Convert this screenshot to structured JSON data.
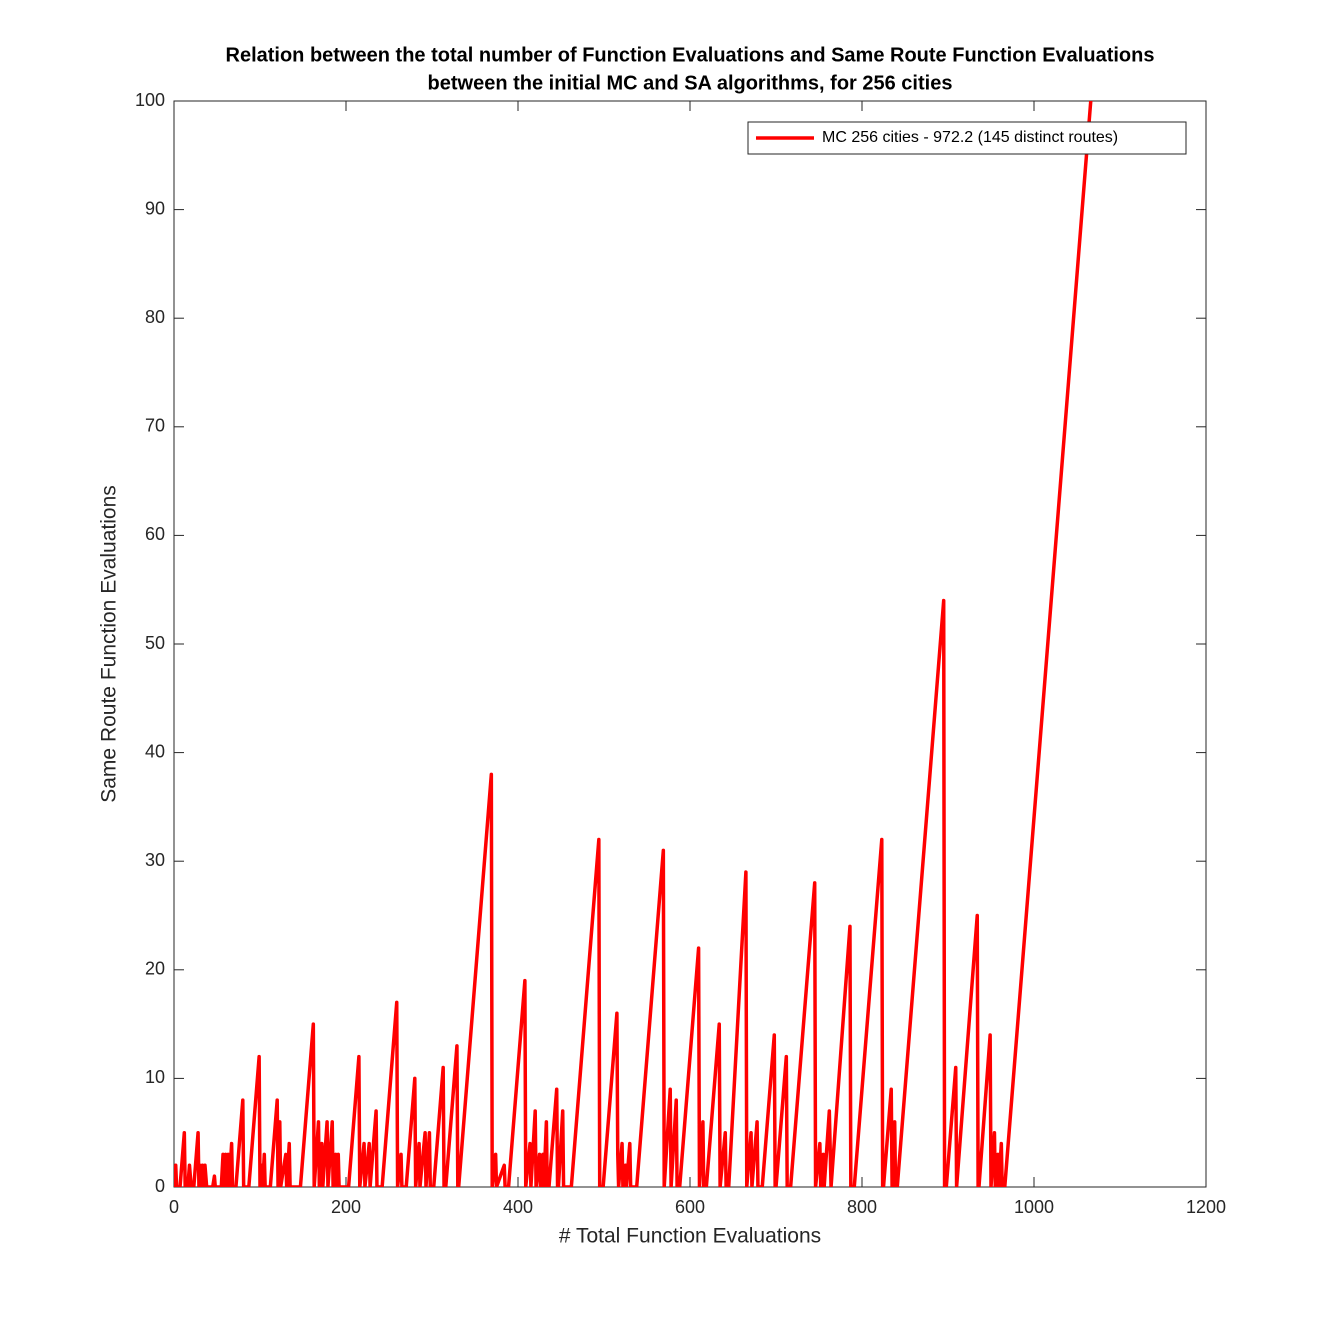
{
  "chart_data": {
    "type": "line",
    "title": [
      "Relation between the total number of Function Evaluations and Same Route Function Evaluations",
      "between the initial MC and SA algorithms, for 256 cities"
    ],
    "xlabel": "# Total Function Evaluations",
    "ylabel": "Same Route Function Evaluations",
    "xlim": [
      0,
      1200
    ],
    "xticks": [
      0,
      200,
      400,
      600,
      800,
      1000,
      1200
    ],
    "ylim": [
      0,
      100
    ],
    "yticks": [
      0,
      10,
      20,
      30,
      40,
      50,
      60,
      70,
      80,
      90,
      100
    ],
    "legend": "top-right",
    "x": [
      0,
      2,
      3,
      7,
      12,
      13,
      16,
      18,
      20,
      23,
      28,
      29,
      30,
      32,
      33,
      35,
      36,
      38,
      45,
      47,
      48,
      55,
      57,
      58,
      60,
      61,
      63,
      64,
      67,
      68,
      72,
      80,
      81,
      87,
      99,
      100,
      102,
      103,
      105,
      106,
      112,
      120,
      121,
      123,
      124,
      130,
      131,
      134,
      135,
      147,
      162,
      163,
      168,
      169,
      172,
      173,
      178,
      179,
      184,
      185,
      188,
      189,
      191,
      192,
      203,
      215,
      216,
      221,
      222,
      227,
      228,
      235,
      236,
      242,
      259,
      260,
      264,
      265,
      270,
      280,
      281,
      285,
      286,
      292,
      293,
      297,
      298,
      302,
      313,
      314,
      316,
      329,
      330,
      331,
      369,
      370,
      374,
      375,
      384,
      385,
      389,
      408,
      409,
      414,
      415,
      420,
      421,
      425,
      426,
      429,
      430,
      433,
      434,
      436,
      445,
      446,
      447,
      452,
      453,
      462,
      494,
      495,
      499,
      515,
      516,
      517,
      521,
      522,
      525,
      526,
      530,
      531,
      538,
      569,
      570,
      577,
      578,
      584,
      585,
      588,
      610,
      611,
      615,
      616,
      619,
      634,
      635,
      641,
      642,
      645,
      665,
      666,
      671,
      672,
      678,
      679,
      684,
      698,
      699,
      700,
      712,
      713,
      717,
      745,
      746,
      751,
      752,
      755,
      756,
      762,
      764,
      786,
      787,
      791,
      823,
      824,
      825,
      834,
      835,
      838,
      839,
      841,
      895,
      896,
      898,
      909,
      910,
      934,
      935,
      936,
      949,
      950,
      954,
      955,
      958,
      959,
      962,
      963,
      966,
      1070
    ],
    "series": [
      {
        "name": "MC 256 cities - 972.2 (145 distinct routes)",
        "color": "#ff0000",
        "values": [
          0,
          2,
          0,
          0,
          5,
          0,
          0,
          2,
          0,
          0,
          5,
          0,
          2,
          0,
          2,
          0,
          2,
          0,
          0,
          1,
          0,
          0,
          3,
          0,
          3,
          0,
          3,
          0,
          4,
          0,
          0,
          8,
          0,
          0,
          12,
          0,
          2,
          0,
          3,
          0,
          0,
          8,
          0,
          6,
          0,
          3,
          0,
          4,
          0,
          0,
          15,
          0,
          6,
          0,
          4,
          0,
          6,
          0,
          6,
          0,
          3,
          0,
          3,
          0,
          0,
          12,
          0,
          4,
          0,
          4,
          0,
          7,
          0,
          0,
          17,
          0,
          3,
          0,
          0,
          10,
          0,
          4,
          0,
          5,
          0,
          5,
          0,
          0,
          11,
          0,
          0,
          13,
          0,
          0,
          38,
          0,
          3,
          0,
          2,
          0,
          0,
          19,
          0,
          4,
          0,
          7,
          0,
          3,
          0,
          3,
          0,
          6,
          0,
          0,
          9,
          0,
          0,
          7,
          0,
          0,
          32,
          0,
          0,
          16,
          3,
          0,
          4,
          0,
          2,
          0,
          4,
          0,
          0,
          31,
          0,
          9,
          0,
          8,
          0,
          0,
          22,
          0,
          6,
          0,
          0,
          15,
          0,
          5,
          0,
          0,
          29,
          0,
          5,
          0,
          6,
          0,
          0,
          14,
          0,
          0,
          12,
          0,
          0,
          28,
          0,
          4,
          0,
          3,
          0,
          7,
          0,
          24,
          0,
          0,
          32,
          0,
          0,
          9,
          0,
          6,
          0,
          0,
          54,
          0,
          0,
          11,
          0,
          25,
          0,
          0,
          14,
          0,
          5,
          0,
          3,
          0,
          4,
          0,
          0,
          104
        ]
      }
    ]
  }
}
